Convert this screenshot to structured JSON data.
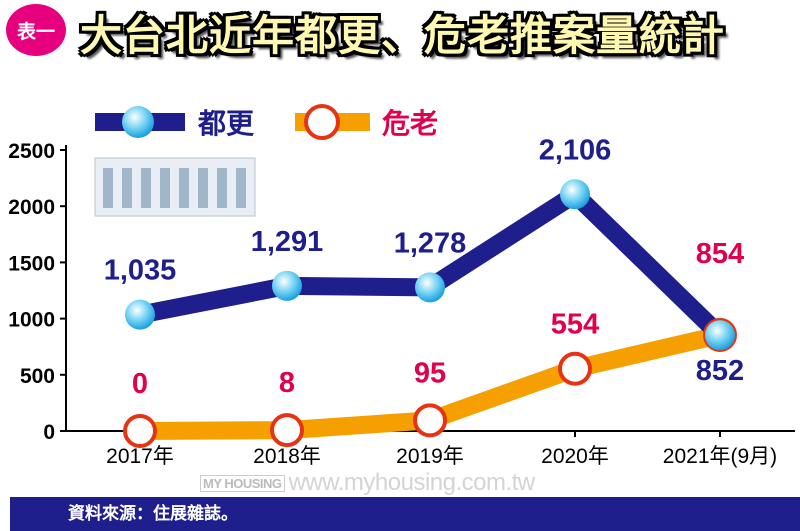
{
  "title": {
    "badge": "表一",
    "text": "大台北近年都更、危老推案量統計"
  },
  "footer": {
    "source": "資料來源：住展雜誌。"
  },
  "watermark": {
    "logo": "MY HOUSING 房屋網",
    "url": "www.myhousing.com.tw"
  },
  "chart_data": {
    "type": "line",
    "categories": [
      "2017年",
      "2018年",
      "2019年",
      "2020年",
      "2021年(9月)"
    ],
    "series": [
      {
        "name": "都更",
        "color": "#1e1e8c",
        "values": [
          1035,
          1291,
          1278,
          2106,
          852
        ],
        "labels": [
          "1,035",
          "1,291",
          "1,278",
          "2,106",
          "852"
        ]
      },
      {
        "name": "危老",
        "color": "#f5a000",
        "values": [
          0,
          8,
          95,
          554,
          854
        ],
        "labels": [
          "0",
          "8",
          "95",
          "554",
          "854"
        ]
      }
    ],
    "ylim": [
      0,
      2500
    ],
    "yticks": [
      "0",
      "500",
      "1000",
      "1500",
      "2000",
      "2500"
    ],
    "legend": "top-left",
    "grid": false,
    "label_colors": {
      "都更": "#1e1e8c",
      "危老": "#e0004d"
    }
  }
}
